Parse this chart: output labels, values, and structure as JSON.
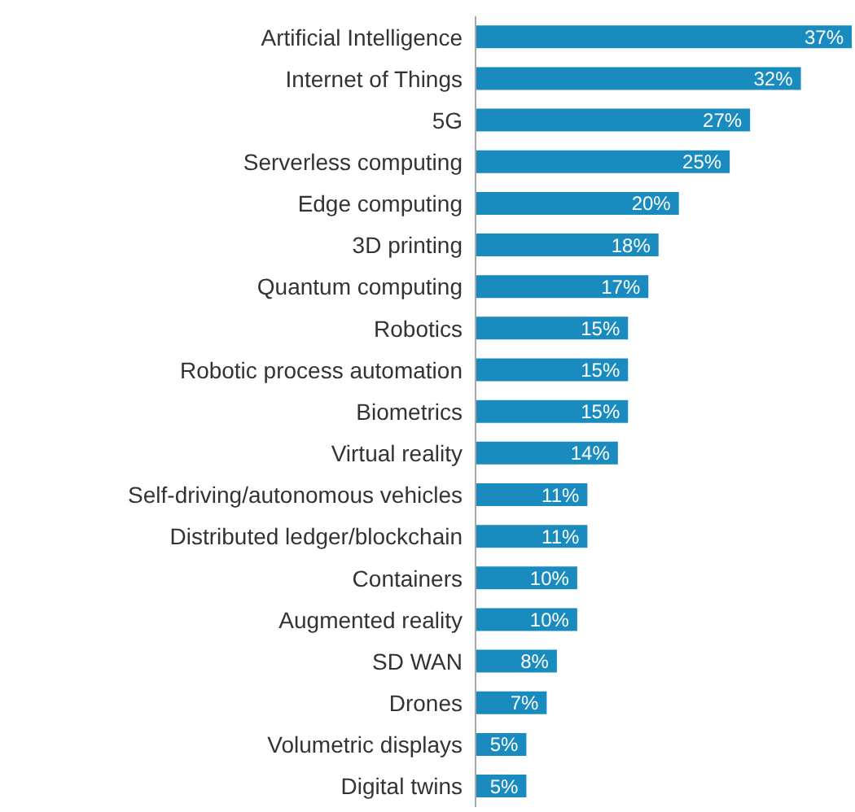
{
  "chart_data": {
    "type": "bar",
    "orientation": "horizontal",
    "color": "#1a8bbf",
    "value_labels": [
      "37%",
      "32%",
      "27%",
      "25%",
      "20%",
      "18%",
      "17%",
      "15%",
      "15%",
      "15%",
      "14%",
      "11%",
      "11%",
      "10%",
      "10%",
      "8%",
      "7%",
      "5%",
      "5%"
    ],
    "categories": [
      "Artificial Intelligence",
      "Internet of Things",
      "5G",
      "Serverless computing",
      "Edge computing",
      "3D printing",
      "Quantum computing",
      "Robotics",
      "Robotic process automation",
      "Biometrics",
      "Virtual reality",
      "Self-driving/autonomous vehicles",
      "Distributed ledger/blockchain",
      "Containers",
      "Augmented reality",
      "SD WAN",
      "Drones",
      "Volumetric displays",
      "Digital twins"
    ],
    "values": [
      37,
      32,
      27,
      25,
      20,
      18,
      17,
      15,
      15,
      15,
      14,
      11,
      11,
      10,
      10,
      8,
      7,
      5,
      5
    ]
  }
}
